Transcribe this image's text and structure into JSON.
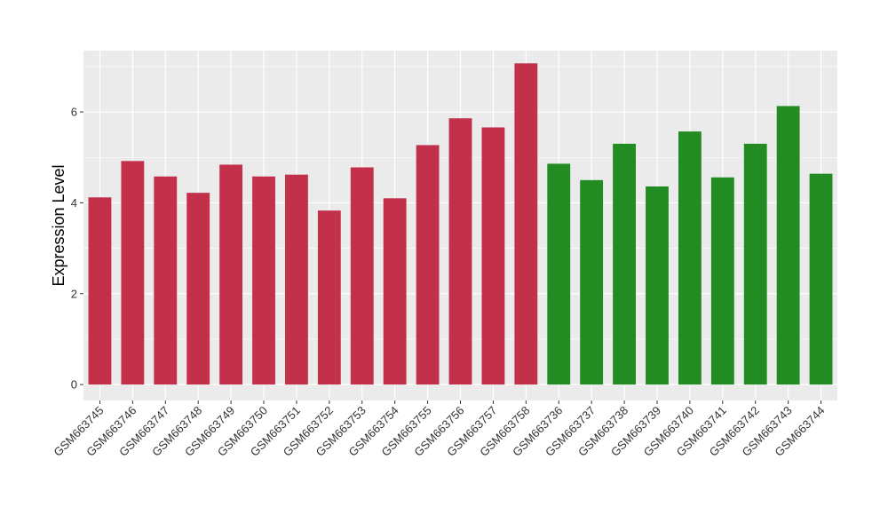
{
  "chart_data": {
    "type": "bar",
    "title": "",
    "xlabel": "",
    "ylabel": "Expression Level",
    "ylim": [
      -0.35,
      7.35
    ],
    "y_ticks": [
      0,
      2,
      4,
      6
    ],
    "grid": true,
    "legend": "none",
    "colors": {
      "group_a": "#C3304A",
      "group_b": "#228B22",
      "panel": "#EBEBEB",
      "grid": "#FFFFFF"
    },
    "categories": [
      "GSM663745",
      "GSM663746",
      "GSM663747",
      "GSM663748",
      "GSM663749",
      "GSM663750",
      "GSM663751",
      "GSM663752",
      "GSM663753",
      "GSM663754",
      "GSM663755",
      "GSM663756",
      "GSM663757",
      "GSM663758",
      "GSM663736",
      "GSM663737",
      "GSM663738",
      "GSM663739",
      "GSM663740",
      "GSM663741",
      "GSM663742",
      "GSM663743",
      "GSM663744"
    ],
    "values": [
      4.12,
      4.92,
      4.58,
      4.22,
      4.84,
      4.58,
      4.62,
      3.83,
      4.78,
      4.1,
      5.27,
      5.86,
      5.66,
      7.07,
      4.86,
      4.5,
      5.3,
      4.36,
      5.57,
      4.56,
      5.3,
      6.13,
      4.64
    ],
    "groups": [
      "a",
      "a",
      "a",
      "a",
      "a",
      "a",
      "a",
      "a",
      "a",
      "a",
      "a",
      "a",
      "a",
      "a",
      "b",
      "b",
      "b",
      "b",
      "b",
      "b",
      "b",
      "b",
      "b"
    ]
  }
}
